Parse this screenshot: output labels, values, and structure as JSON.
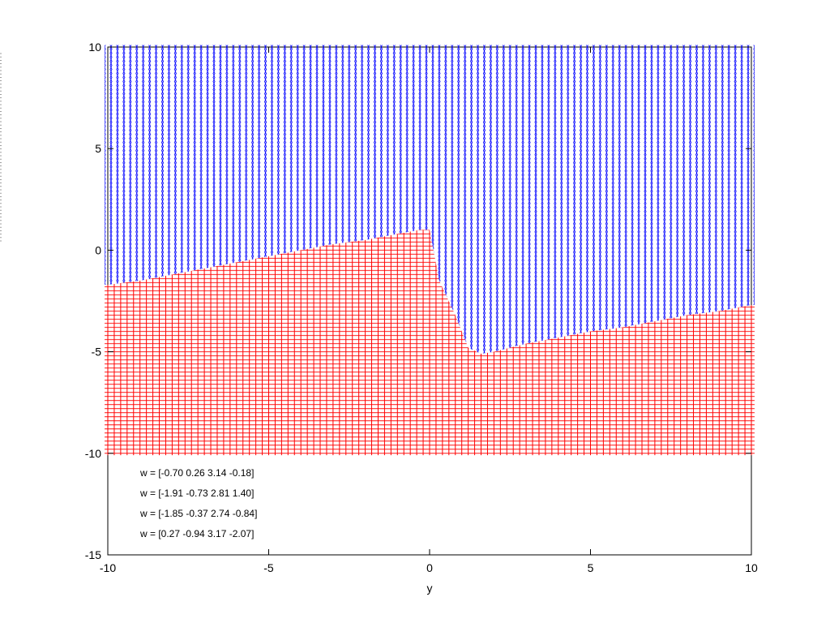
{
  "chart_data": {
    "type": "scatter",
    "title": "",
    "xlabel": "y",
    "ylabel": "",
    "xlim": [
      -10,
      10
    ],
    "ylim": [
      -15,
      10
    ],
    "grid": false,
    "x_ticks": [
      "-10",
      "-5",
      "0",
      "5",
      "10"
    ],
    "y_ticks": [
      "-15",
      "-10",
      "-5",
      "0",
      "5",
      "10"
    ],
    "grid_spacing": 0.2,
    "series": [
      {
        "marker": "circle",
        "color": "#0000ff",
        "region": "above_boundary",
        "boundary": {
          "x": [
            -10,
            -9,
            -8,
            -7,
            -6,
            -5,
            -4,
            -3,
            -2,
            -1,
            -0.3,
            0,
            0.3,
            0.8,
            1.2,
            1.6,
            2,
            3,
            4,
            5,
            6,
            7,
            8,
            9,
            10
          ],
          "y": [
            -1.7,
            -1.5,
            -1.2,
            -0.9,
            -0.6,
            -0.3,
            0.0,
            0.3,
            0.5,
            0.8,
            1.0,
            1.0,
            -1.5,
            -3.2,
            -4.8,
            -5.1,
            -5.0,
            -4.6,
            -4.3,
            -4.0,
            -3.8,
            -3.5,
            -3.2,
            -3.0,
            -2.7
          ]
        }
      },
      {
        "marker": "plus",
        "color": "#ff0000",
        "region": "below_boundary",
        "ymin": -10
      }
    ],
    "annotations": [
      "w = [-0.70 0.26 3.14 -0.18]",
      "w = [-1.91 -0.73 2.81 1.40]",
      "w = [-1.85 -0.37 2.74 -0.84]",
      "w = [0.27 -0.94 3.17 -2.07]"
    ]
  }
}
